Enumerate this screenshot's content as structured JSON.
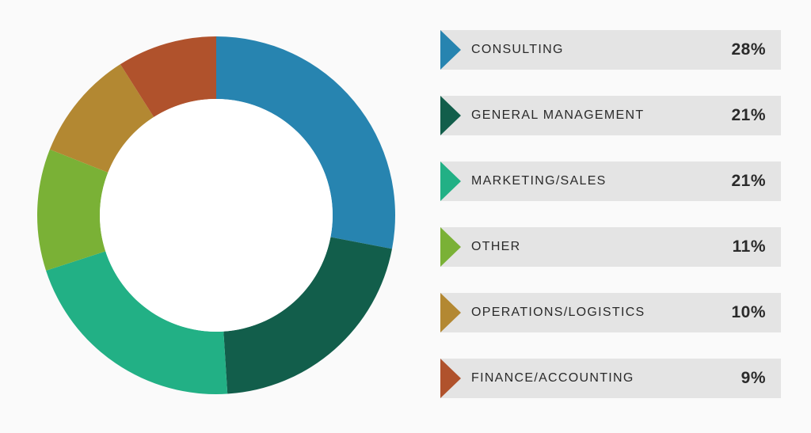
{
  "chart_data": {
    "type": "pie",
    "style": "donut",
    "categories": [
      "CONSULTING",
      "GENERAL MANAGEMENT",
      "MARKETING/SALES",
      "OTHER",
      "OPERATIONS/LOGISTICS",
      "FINANCE/ACCOUNTING"
    ],
    "values": [
      28,
      21,
      21,
      11,
      10,
      9
    ],
    "value_labels": [
      "28%",
      "21%",
      "21%",
      "11%",
      "10%",
      "9%"
    ],
    "unit": "%",
    "colors": [
      "#2784b0",
      "#125e4b",
      "#22b085",
      "#7ab136",
      "#b38832",
      "#b0522c"
    ],
    "legend_position": "right",
    "start_angle": "top",
    "direction": "clockwise"
  }
}
